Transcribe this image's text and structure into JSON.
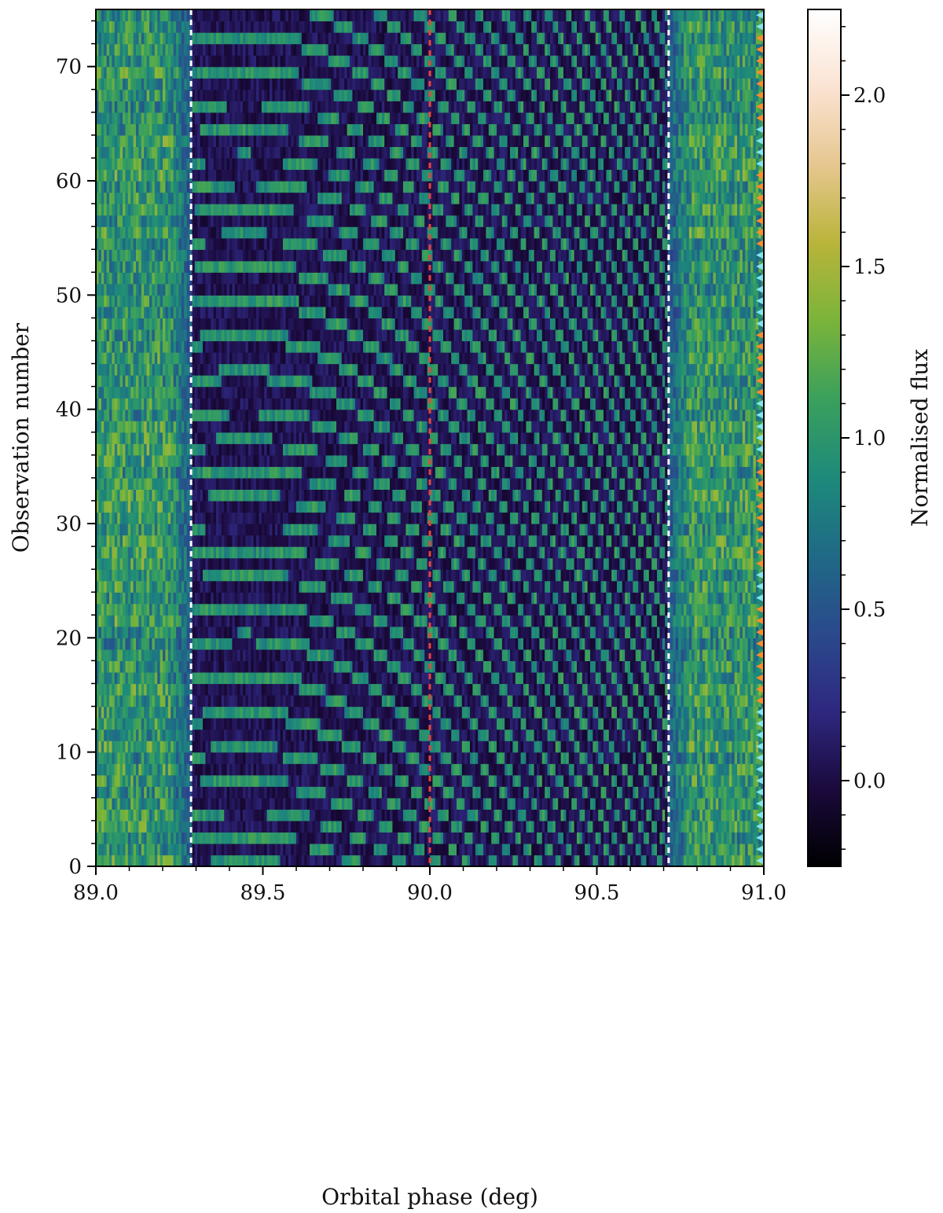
{
  "chart_data": {
    "type": "heatmap",
    "title": "",
    "xlabel": "Orbital phase (deg)",
    "ylabel": "Observation number",
    "xlim": [
      89.0,
      91.0
    ],
    "ylim": [
      0,
      75
    ],
    "x_ticks": [
      89.0,
      89.5,
      90.0,
      90.5,
      91.0
    ],
    "x_tick_labels": [
      "89.0",
      "89.5",
      "90.0",
      "90.5",
      "91.0"
    ],
    "x_minor_step": 0.1,
    "y_ticks": [
      0,
      10,
      20,
      30,
      40,
      50,
      60,
      70
    ],
    "y_tick_labels": [
      "0",
      "10",
      "20",
      "30",
      "40",
      "50",
      "60",
      "70"
    ],
    "y_minor_step": 2,
    "n_observations": 75,
    "transit_window": [
      89.285,
      90.715
    ],
    "mid_transit": 90.0,
    "vertical_lines": [
      {
        "x": 89.285,
        "color": "#ffffff",
        "style": "dashed"
      },
      {
        "x": 90.0,
        "color": "#e8443a",
        "style": "dashed"
      },
      {
        "x": 90.715,
        "color": "#ffffff",
        "style": "dashed"
      }
    ],
    "out_of_transit_mean_flux": 1.0,
    "in_transit_background_flux": 0.05,
    "trail_peak_flux": 1.0,
    "colorbar": {
      "label": "Normalised flux",
      "range": [
        -0.25,
        2.25
      ],
      "ticks": [
        0.0,
        0.5,
        1.0,
        1.5,
        2.0
      ],
      "tick_labels": [
        "0.0",
        "0.5",
        "1.0",
        "1.5",
        "2.0"
      ],
      "minor_step": 0.1,
      "colormap": "batlow",
      "stops": [
        "#000000",
        "#1b0a3d",
        "#2e2880",
        "#2a4a8c",
        "#1f6a86",
        "#1e8a7a",
        "#3aa05c",
        "#7ab43a",
        "#b9b43a",
        "#e6c78f",
        "#fbe3d3",
        "#ffffff"
      ]
    },
    "markers": {
      "x": 91.0,
      "shape": "left-pointing triangle",
      "colors": {
        "cyan": "#7fe6ee",
        "orange": "#ff8c2a"
      },
      "obs_colors": "CCCCCCCCCCCCCCOOOOOOOOOCCCOOOOOOOOOOCCCCCOOOOOOCCCCCCCOOOOOOOCCCCOOOOOOOOCC"
    }
  }
}
